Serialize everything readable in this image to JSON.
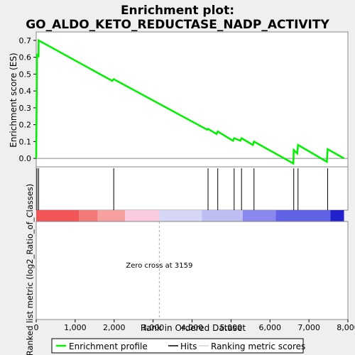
{
  "chart_data": {
    "type": "line",
    "title_line1": "Enrichment plot:",
    "title_line2": "GO_ALDO_KETO_REDUCTASE_NADP_ACTIVITY",
    "ylabel_top": "Enrichment score (ES)",
    "ylabel_bottom": "Ranked list metric (log2_Ratio_of_Classes)",
    "xlabel": "Rank in Ordered Dataset",
    "xlim": [
      0,
      8000
    ],
    "ylim": [
      -0.05,
      0.75
    ],
    "x_ticks": [
      0,
      1000,
      2000,
      3000,
      4000,
      5000,
      6000,
      7000,
      8000
    ],
    "x_tick_labels": [
      "0",
      "1,000",
      "2,000",
      "3,000",
      "4,000",
      "5,000",
      "6,000",
      "7,000",
      "8,000"
    ],
    "y_ticks": [
      0.0,
      0.1,
      0.2,
      0.3,
      0.4,
      0.5,
      0.6,
      0.7
    ],
    "y_tick_labels": [
      "0.0",
      "0.1",
      "0.2",
      "0.3",
      "0.4",
      "0.5",
      "0.6",
      "0.7"
    ],
    "zero_cross_label": "Zero cross at 3159",
    "zero_cross": 3159,
    "enrichment_profile": {
      "name": "Enrichment profile",
      "color": "#00ee00",
      "x": [
        0,
        20,
        22,
        60,
        62,
        1950,
        1990,
        4390,
        4410,
        4630,
        4660,
        5050,
        5080,
        5240,
        5270,
        5560,
        5590,
        6600,
        6610,
        6700,
        6720,
        7460,
        7480,
        7900
      ],
      "y": [
        0.0,
        0.59,
        0.62,
        0.6,
        0.7,
        0.46,
        0.47,
        0.17,
        0.175,
        0.145,
        0.16,
        0.105,
        0.12,
        0.105,
        0.12,
        0.08,
        0.1,
        -0.03,
        0.05,
        0.03,
        0.08,
        -0.02,
        0.055,
        0.0
      ]
    },
    "hits": [
      20,
      62,
      1990,
      4410,
      4660,
      5080,
      5270,
      5590,
      6610,
      6720,
      7480
    ],
    "metric_bar_segments": [
      {
        "from": 0,
        "to": 1100,
        "color": "#f25555"
      },
      {
        "from": 1100,
        "to": 1580,
        "color": "#f47a7a"
      },
      {
        "from": 1580,
        "to": 2280,
        "color": "#f7a0a0"
      },
      {
        "from": 2280,
        "to": 3159,
        "color": "#fbcbe1"
      },
      {
        "from": 3159,
        "to": 4250,
        "color": "#d6d6f7"
      },
      {
        "from": 4250,
        "to": 5300,
        "color": "#bebef2"
      },
      {
        "from": 5300,
        "to": 6150,
        "color": "#8888ee"
      },
      {
        "from": 6150,
        "to": 7550,
        "color": "#6262e6"
      },
      {
        "from": 7550,
        "to": 7900,
        "color": "#2020cc"
      }
    ],
    "legend": [
      {
        "label": "Enrichment profile",
        "color": "#00ee00"
      },
      {
        "label": "Hits",
        "color": "#000000"
      },
      {
        "label": "Ranking metric scores",
        "color": "#bbbbbb"
      }
    ]
  }
}
